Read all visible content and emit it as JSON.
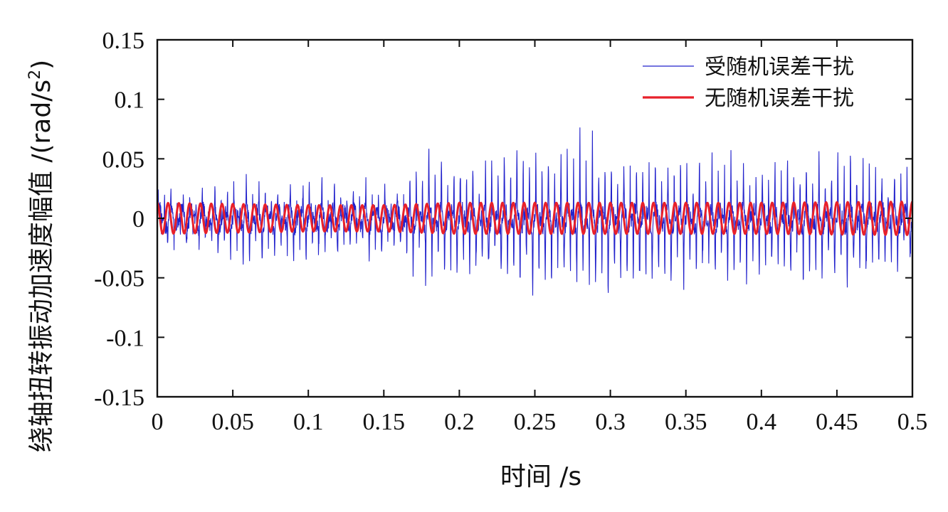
{
  "chart_data": {
    "type": "line",
    "title": "",
    "xlabel": "时间 /s",
    "ylabel_main": "绕轴扭转振动加速度幅值 /(rad/s",
    "ylabel_sup": "2",
    "ylabel_tail": ")",
    "xlim": [
      0,
      0.5
    ],
    "ylim": [
      -0.15,
      0.15
    ],
    "xticks": [
      0,
      0.05,
      0.1,
      0.15,
      0.2,
      0.25,
      0.3,
      0.35,
      0.4,
      0.45,
      0.5
    ],
    "xtick_labels": [
      "0",
      "0.05",
      "0.1",
      "0.15",
      "0.2",
      "0.25",
      "0.3",
      "0.35",
      "0.4",
      "0.45",
      "0.5"
    ],
    "yticks": [
      -0.15,
      -0.1,
      -0.05,
      0,
      0.05,
      0.1,
      0.15
    ],
    "ytick_labels": [
      "-0.15",
      "-0.1",
      "-0.05",
      "0",
      "0.05",
      "0.1",
      "0.15"
    ],
    "grid": false,
    "legend_position": "top-right",
    "series": [
      {
        "name": "受随机误差干扰",
        "color": "#2222cc",
        "frequency_hz": 240,
        "envelope_t": [
          0,
          0.02,
          0.04,
          0.06,
          0.08,
          0.1,
          0.12,
          0.14,
          0.16,
          0.17,
          0.18,
          0.2,
          0.22,
          0.24,
          0.26,
          0.28,
          0.3,
          0.32,
          0.34,
          0.36,
          0.38,
          0.4,
          0.42,
          0.44,
          0.46,
          0.48,
          0.5
        ],
        "envelope_max": [
          0.026,
          0.022,
          0.025,
          0.035,
          0.022,
          0.035,
          0.025,
          0.027,
          0.02,
          0.045,
          0.055,
          0.052,
          0.055,
          0.062,
          0.068,
          0.072,
          0.06,
          0.058,
          0.055,
          0.05,
          0.05,
          0.045,
          0.05,
          0.055,
          0.058,
          0.045,
          0.05
        ],
        "envelope_min": [
          -0.028,
          -0.022,
          -0.028,
          -0.038,
          -0.028,
          -0.04,
          -0.03,
          -0.033,
          -0.025,
          -0.045,
          -0.05,
          -0.05,
          -0.055,
          -0.057,
          -0.06,
          -0.062,
          -0.06,
          -0.065,
          -0.055,
          -0.05,
          -0.05,
          -0.048,
          -0.05,
          -0.055,
          -0.058,
          -0.045,
          -0.038
        ]
      },
      {
        "name": "无随机误差干扰",
        "color": "#e8202a",
        "frequency_hz": 140,
        "amplitude_t": [
          0,
          0.1,
          0.15,
          0.2,
          0.3,
          0.4,
          0.5
        ],
        "amplitude": [
          0.013,
          0.011,
          0.011,
          0.013,
          0.013,
          0.013,
          0.014
        ]
      }
    ]
  }
}
